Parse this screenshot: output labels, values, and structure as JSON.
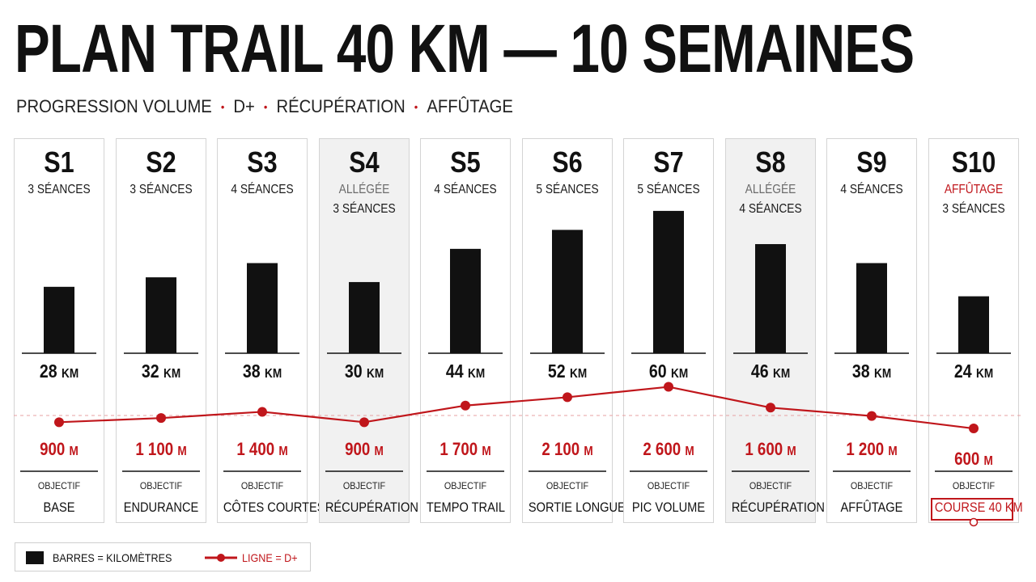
{
  "title": "PLAN TRAIL 40 KM — 10 SEMAINES",
  "subtitle": [
    "PROGRESSION VOLUME",
    "D+",
    "RÉCUPÉRATION",
    "AFFÛTAGE"
  ],
  "subtitle_separator": "•",
  "colors": {
    "accent_red": "#c0161b",
    "bar": "#111111",
    "light_week_bg": "#f1f1f1"
  },
  "units": {
    "km": "KM",
    "m": "M"
  },
  "objective_header": "OBJECTIF",
  "legend": {
    "bars": "BARRES = KILOMÈTRES",
    "line": "LIGNE = D+"
  },
  "chart_data": {
    "type": "bar",
    "categories": [
      "S1",
      "S2",
      "S3",
      "S4",
      "S5",
      "S6",
      "S7",
      "S8",
      "S9",
      "S10"
    ],
    "series": [
      {
        "name": "KILOMÈTRES",
        "type": "bar",
        "unit": "KM",
        "values": [
          28,
          32,
          38,
          30,
          44,
          52,
          60,
          46,
          38,
          24
        ]
      },
      {
        "name": "D+",
        "type": "line",
        "unit": "M",
        "values": [
          900,
          1100,
          1400,
          900,
          1700,
          2100,
          2600,
          1600,
          1200,
          600
        ]
      }
    ],
    "km_labels": [
      "28",
      "32",
      "38",
      "30",
      "44",
      "52",
      "60",
      "46",
      "38",
      "24"
    ],
    "dplus_labels": [
      "900",
      "1 100",
      "1 400",
      "900",
      "1 700",
      "2 100",
      "2 600",
      "1 600",
      "1 200",
      "600"
    ],
    "weeks": [
      {
        "label": "S1",
        "tag": "",
        "sessions": "3 SÉANCES",
        "objective": "BASE",
        "light": false
      },
      {
        "label": "S2",
        "tag": "",
        "sessions": "3 SÉANCES",
        "objective": "ENDURANCE",
        "light": false
      },
      {
        "label": "S3",
        "tag": "",
        "sessions": "4 SÉANCES",
        "objective": "CÔTES COURTES",
        "light": false
      },
      {
        "label": "S4",
        "tag": "ALLÉGÉE",
        "sessions": "3 SÉANCES",
        "objective": "RÉCUPÉRATION",
        "light": true
      },
      {
        "label": "S5",
        "tag": "",
        "sessions": "4 SÉANCES",
        "objective": "TEMPO TRAIL",
        "light": false
      },
      {
        "label": "S6",
        "tag": "",
        "sessions": "5 SÉANCES",
        "objective": "SORTIE LONGUE",
        "light": false
      },
      {
        "label": "S7",
        "tag": "",
        "sessions": "5 SÉANCES",
        "objective": "PIC VOLUME",
        "light": false
      },
      {
        "label": "S8",
        "tag": "ALLÉGÉE",
        "sessions": "4 SÉANCES",
        "objective": "RÉCUPÉRATION",
        "light": true
      },
      {
        "label": "S9",
        "tag": "",
        "sessions": "4 SÉANCES",
        "objective": "AFFÛTAGE",
        "light": false
      },
      {
        "label": "S10",
        "tag": "AFFÛTAGE",
        "sessions": "3 SÉANCES",
        "objective": "COURSE 40 KM",
        "light": false
      }
    ],
    "legend_position": "bottom-left"
  }
}
